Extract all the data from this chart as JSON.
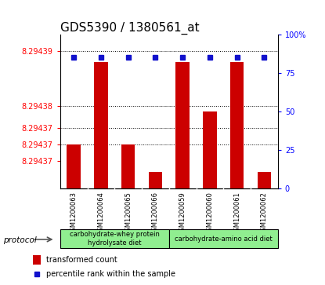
{
  "title": "GDS5390 / 1380561_at",
  "samples": [
    "GSM1200063",
    "GSM1200064",
    "GSM1200065",
    "GSM1200066",
    "GSM1200059",
    "GSM1200060",
    "GSM1200061",
    "GSM1200062"
  ],
  "transformed_count": [
    8.294373,
    8.294388,
    8.294373,
    8.294368,
    8.294388,
    8.294379,
    8.294388,
    8.294368
  ],
  "percentile_rank": [
    85,
    85,
    85,
    85,
    85,
    85,
    85,
    85
  ],
  "y_min": 8.294365,
  "y_max": 8.294393,
  "left_tick_vals": [
    8.29437,
    8.294373,
    8.294376,
    8.29438,
    8.29439
  ],
  "left_tick_labels": [
    "8.29437",
    "8.29437",
    "8.29437",
    "8.29438",
    "8.29439"
  ],
  "yticks_right": [
    0,
    25,
    50,
    75,
    100
  ],
  "group1_label": "carbohydrate-whey protein\nhydrolysate diet",
  "group2_label": "carbohydrate-amino acid diet",
  "group_color": "#90EE90",
  "bar_color": "#CC0000",
  "percentile_color": "#1111CC",
  "bar_width": 0.5,
  "bg_color": "#D8D8D8",
  "plot_bg": "#FFFFFF",
  "title_fontsize": 11,
  "tick_label_fontsize": 7
}
